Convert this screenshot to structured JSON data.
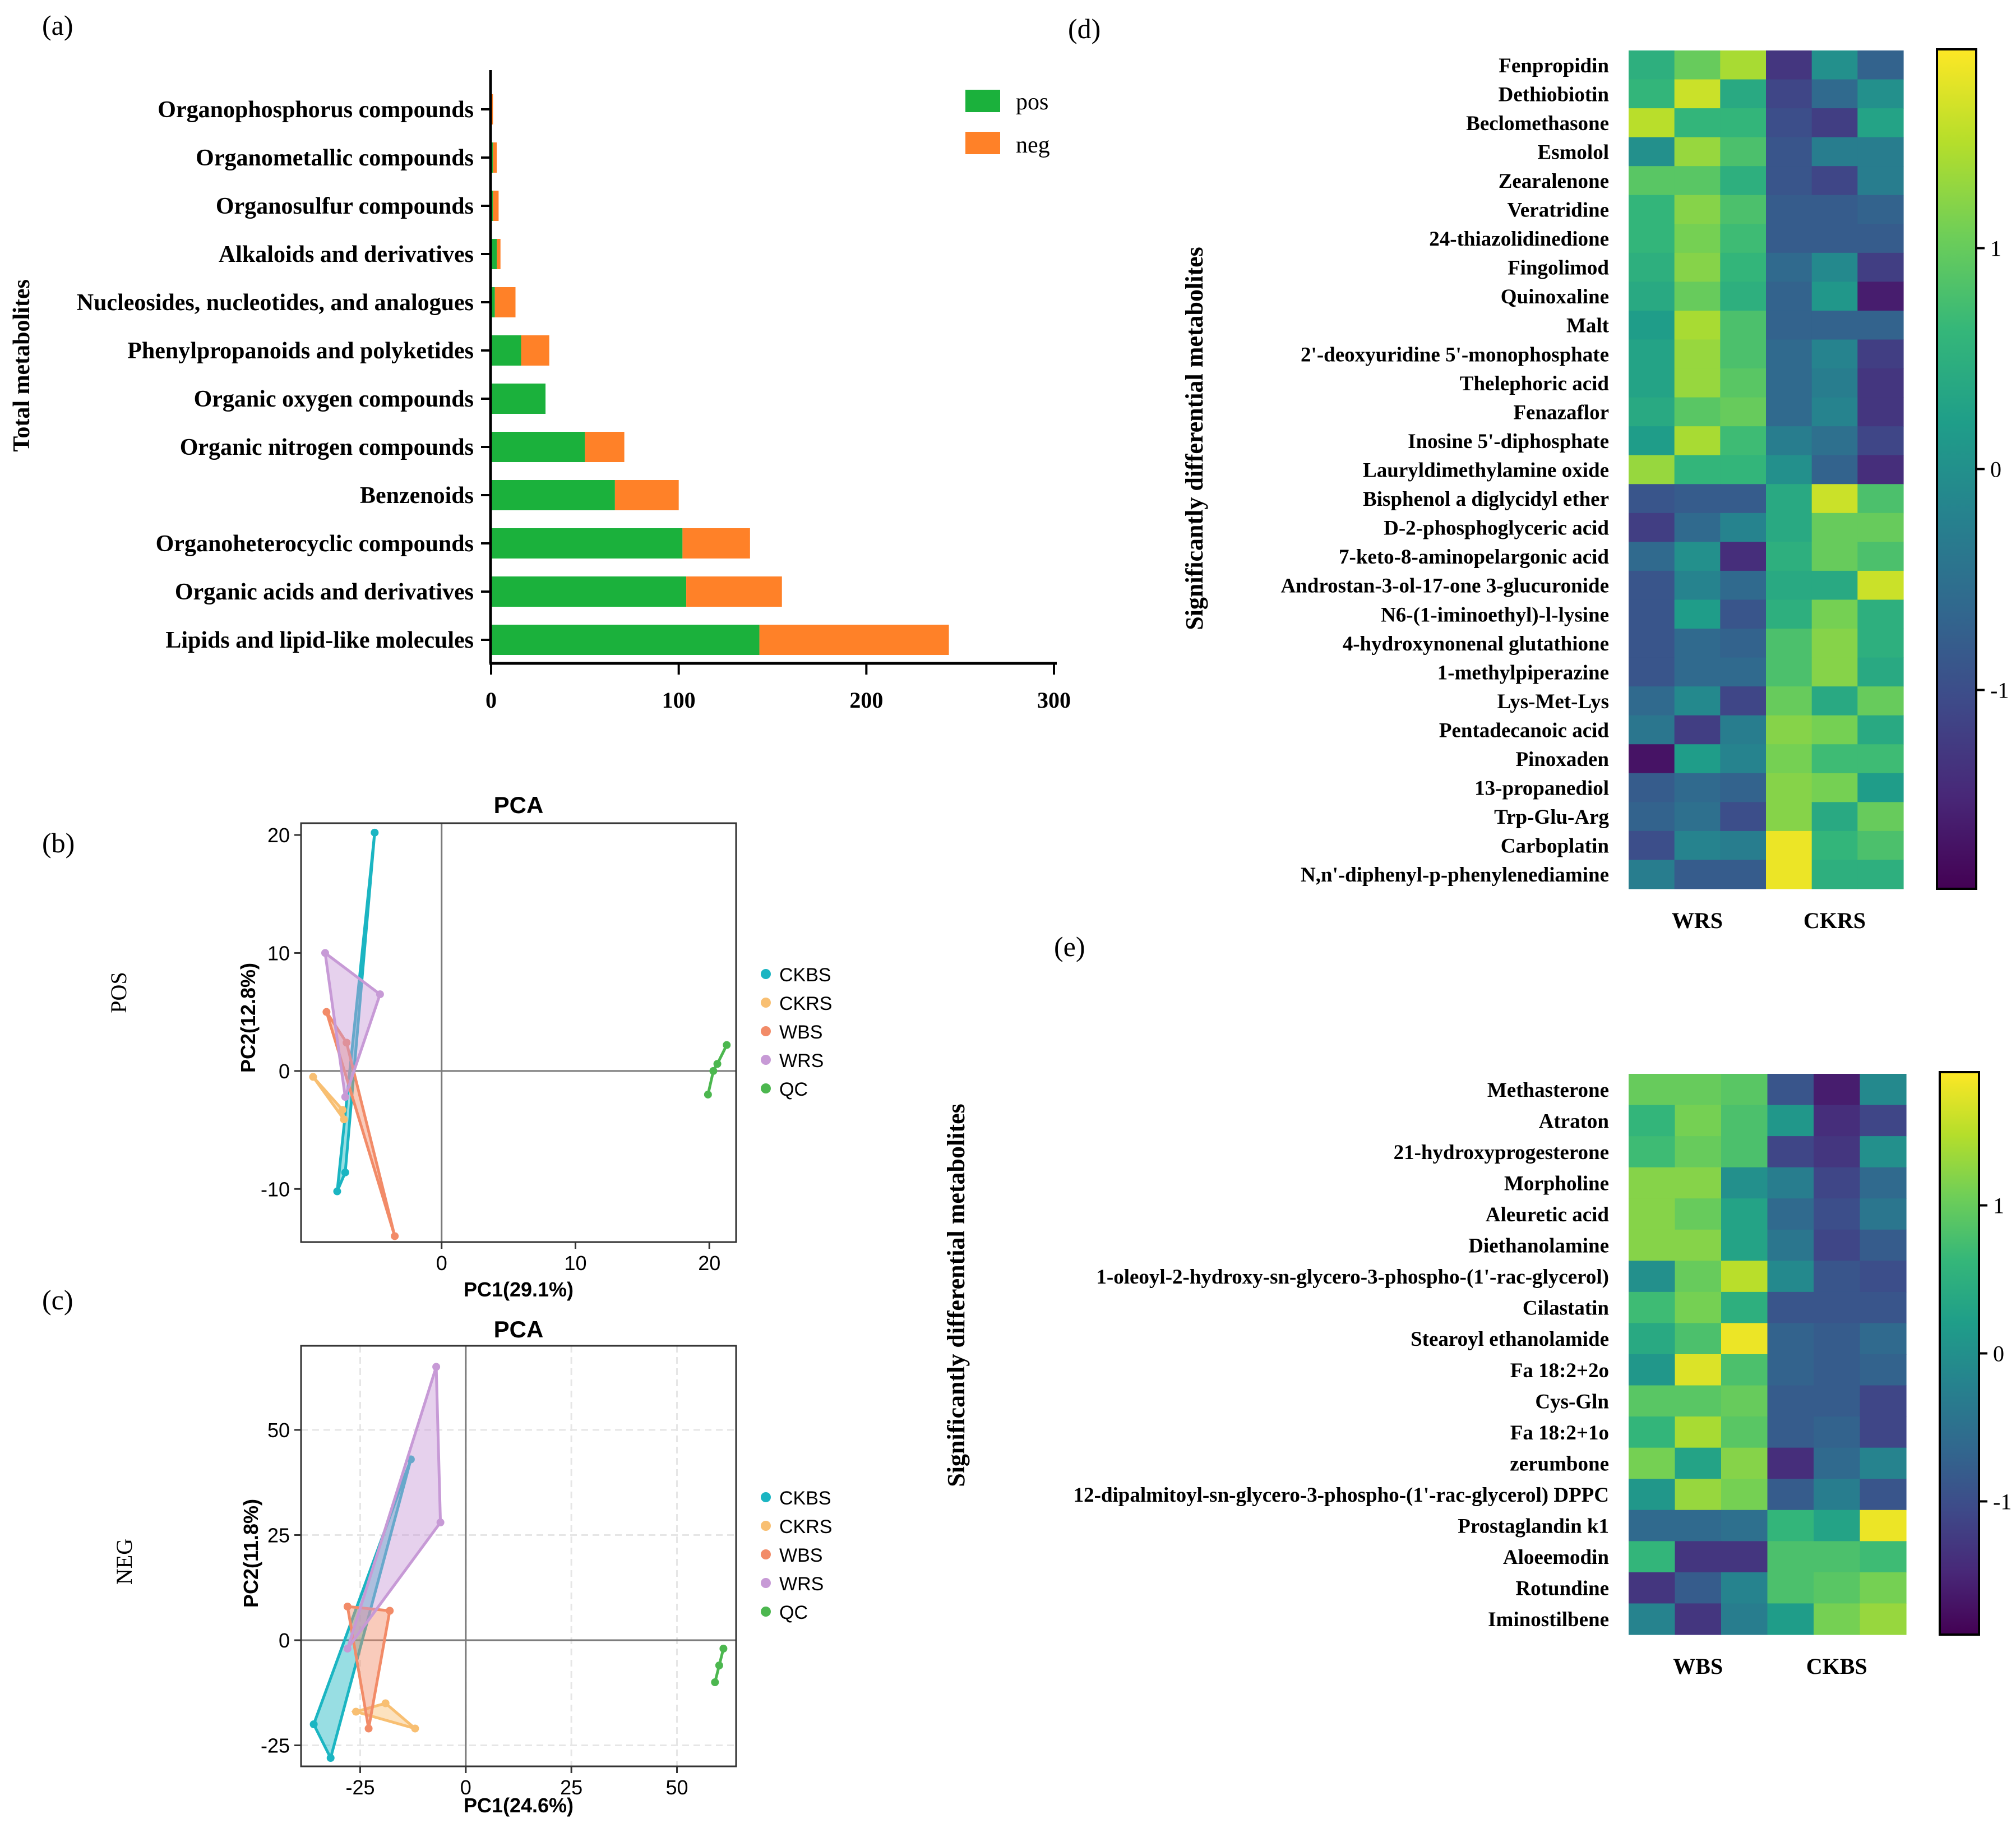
{
  "panel_labels": {
    "a": "(a)",
    "b": "(b)",
    "c": "(c)",
    "d": "(d)",
    "e": "(e)"
  },
  "colors": {
    "pos": "#1bb13c",
    "neg": "#ff8128",
    "CKBS": "#1bb5c2",
    "CKRS": "#f8bf72",
    "WBS": "#f28b68",
    "WRS": "#c79ad6",
    "QC": "#4cb74f",
    "viridis": [
      "#440154",
      "#482878",
      "#3e4a89",
      "#31688e",
      "#26828e",
      "#1f9e89",
      "#35b779",
      "#6ece58",
      "#b5de2b",
      "#fde725"
    ]
  },
  "chart_data": [
    {
      "id": "a",
      "type": "bar",
      "stacked": true,
      "orientation": "horizontal",
      "ylabel": "Total metabolites",
      "xlim": [
        0,
        300
      ],
      "xticks": [
        "0",
        "100",
        "200",
        "300"
      ],
      "categories": [
        "Organophosphorus compounds",
        "Organometallic compounds",
        "Organosulfur compounds",
        "Alkaloids and derivatives",
        "Nucleosides, nucleotides, and analogues",
        "Phenylpropanoids and polyketides",
        "Organic oxygen compounds",
        "Organic nitrogen compounds",
        "Benzenoids",
        "Organoheterocyclic compounds",
        "Organic acids and derivatives",
        "Lipids and lipid-like molecules"
      ],
      "series": [
        {
          "name": "pos",
          "values": [
            0,
            1,
            1,
            3,
            2,
            16,
            29,
            50,
            66,
            102,
            104,
            143
          ]
        },
        {
          "name": "neg",
          "values": [
            1,
            2,
            3,
            2,
            11,
            15,
            0,
            21,
            34,
            36,
            51,
            101
          ]
        }
      ],
      "legend": [
        "pos",
        "neg"
      ]
    },
    {
      "id": "b",
      "type": "scatter",
      "title": "PCA",
      "side_label": "POS",
      "xlabel": "PC1(29.1%)",
      "ylabel": "PC2(12.8%)",
      "xlim": [
        -10.5,
        22
      ],
      "ylim": [
        -14.5,
        21
      ],
      "xticks": [
        0,
        10,
        20
      ],
      "yticks": [
        -10,
        0,
        10,
        20
      ],
      "grid": false,
      "series": [
        {
          "name": "CKBS",
          "points": [
            [
              -5,
              20.2
            ],
            [
              -7.2,
              -8.6
            ],
            [
              -7.8,
              -10.2
            ]
          ]
        },
        {
          "name": "CKRS",
          "points": [
            [
              -9.6,
              -0.5
            ],
            [
              -7.4,
              -3.3
            ],
            [
              -7.3,
              -4.1
            ]
          ]
        },
        {
          "name": "WBS",
          "points": [
            [
              -8.6,
              5
            ],
            [
              -7.1,
              2.4
            ],
            [
              -3.5,
              -14
            ]
          ]
        },
        {
          "name": "WRS",
          "points": [
            [
              -8.7,
              10
            ],
            [
              -4.6,
              6.5
            ],
            [
              -7.2,
              -2.2
            ]
          ]
        },
        {
          "name": "QC",
          "points": [
            [
              21.3,
              2.2
            ],
            [
              20.6,
              0.6
            ],
            [
              20.3,
              0
            ],
            [
              19.9,
              -2
            ]
          ]
        }
      ]
    },
    {
      "id": "c",
      "type": "scatter",
      "title": "PCA",
      "side_label": "NEG",
      "xlabel": "PC1(24.6%)",
      "ylabel": "PC2(11.8%)",
      "xlim": [
        -39,
        64
      ],
      "ylim": [
        -30,
        70
      ],
      "xticks": [
        -25,
        0,
        25,
        50
      ],
      "yticks": [
        -25,
        0,
        25,
        50
      ],
      "grid": true,
      "series": [
        {
          "name": "CKBS",
          "points": [
            [
              -13,
              43
            ],
            [
              -36,
              -20
            ],
            [
              -32,
              -28
            ]
          ]
        },
        {
          "name": "CKRS",
          "points": [
            [
              -26,
              -17
            ],
            [
              -19,
              -15
            ],
            [
              -12,
              -21
            ]
          ]
        },
        {
          "name": "WBS",
          "points": [
            [
              -28,
              8
            ],
            [
              -18,
              7
            ],
            [
              -23,
              -21
            ]
          ]
        },
        {
          "name": "WRS",
          "points": [
            [
              -7,
              65
            ],
            [
              -6,
              28
            ],
            [
              -28,
              -2
            ]
          ]
        },
        {
          "name": "QC",
          "points": [
            [
              61,
              -2
            ],
            [
              60,
              -6
            ],
            [
              59,
              -10
            ]
          ]
        }
      ]
    },
    {
      "id": "d",
      "type": "heatmap",
      "ylabel": "Significantly differential metabolites",
      "groups": [
        "WRS",
        "CKRS"
      ],
      "colorbar_ticks": [
        "1",
        "0",
        "-1"
      ],
      "rows": [
        "Fenpropidin",
        "Dethiobiotin",
        "Beclomethasone",
        "Esmolol",
        "Zearalenone",
        "Veratridine",
        "24-thiazolidinedione",
        "Fingolimod",
        "Quinoxaline",
        "Malt",
        "2'-deoxyuridine 5'-monophosphate",
        "Thelephoric acid",
        "Fenazaflor",
        "Inosine 5'-diphosphate",
        "Lauryldimethylamine oxide",
        "Bisphenol a diglycidyl ether",
        "D-2-phosphoglyceric acid",
        "7-keto-8-aminopelargonic acid",
        "Androstan-3-ol-17-one 3-glucuronide",
        "N6-(1-iminoethyl)-l-lysine",
        "4-hydroxynonenal glutathione",
        "1-methylpiperazine",
        "Lys-Met-Lys",
        "Pentadecanoic acid",
        "Pinoxaden",
        "13-propanediol",
        "Trp-Glu-Arg",
        "Carboplatin",
        "N,n'-diphenyl-p-phenylenediamine"
      ],
      "values": [
        [
          0.5,
          1.0,
          1.4,
          -1.3,
          0.0,
          -0.7
        ],
        [
          0.6,
          1.6,
          0.4,
          -1.1,
          -0.6,
          0.0
        ],
        [
          1.5,
          0.6,
          0.6,
          -1.0,
          -1.2,
          0.3
        ],
        [
          0.0,
          1.3,
          0.8,
          -0.9,
          -0.3,
          -0.3
        ],
        [
          0.9,
          0.9,
          0.5,
          -0.9,
          -1.1,
          -0.3
        ],
        [
          0.6,
          1.2,
          0.8,
          -0.8,
          -0.8,
          -0.7
        ],
        [
          0.6,
          1.1,
          0.7,
          -0.8,
          -0.8,
          -0.8
        ],
        [
          0.5,
          1.2,
          0.6,
          -0.6,
          -0.1,
          -1.2
        ],
        [
          0.4,
          1.0,
          0.5,
          -0.7,
          0.1,
          -1.6
        ],
        [
          0.2,
          1.4,
          0.8,
          -0.7,
          -0.7,
          -0.7
        ],
        [
          0.3,
          1.3,
          0.8,
          -0.6,
          -0.2,
          -1.2
        ],
        [
          0.3,
          1.3,
          0.9,
          -0.6,
          -0.3,
          -1.3
        ],
        [
          0.4,
          0.9,
          1.0,
          -0.6,
          -0.2,
          -1.3
        ],
        [
          0.2,
          1.4,
          0.7,
          -0.3,
          -0.5,
          -1.1
        ],
        [
          1.3,
          0.6,
          0.6,
          0.0,
          -0.7,
          -1.4
        ],
        [
          -0.9,
          -0.8,
          -0.8,
          0.4,
          1.6,
          0.8
        ],
        [
          -1.2,
          -0.6,
          -0.2,
          0.4,
          1.0,
          1.0
        ],
        [
          -0.6,
          0.0,
          -1.4,
          0.5,
          1.0,
          0.8
        ],
        [
          -0.9,
          -0.2,
          -0.6,
          0.4,
          0.4,
          1.6
        ],
        [
          -0.9,
          0.2,
          -0.9,
          0.5,
          1.1,
          0.5
        ],
        [
          -0.9,
          -0.6,
          -0.7,
          0.8,
          1.2,
          0.5
        ],
        [
          -0.9,
          -0.6,
          -0.6,
          0.8,
          1.2,
          0.4
        ],
        [
          -0.6,
          -0.1,
          -1.1,
          1.0,
          0.4,
          1.0
        ],
        [
          -0.4,
          -1.2,
          -0.3,
          1.2,
          1.1,
          0.4
        ],
        [
          -1.7,
          0.2,
          -0.2,
          1.1,
          0.7,
          0.7
        ],
        [
          -0.8,
          -0.6,
          -0.7,
          1.2,
          1.1,
          0.2
        ],
        [
          -0.7,
          -0.5,
          -1.0,
          1.2,
          0.4,
          1.0
        ],
        [
          -1.0,
          -0.2,
          -0.3,
          1.8,
          0.6,
          0.8
        ],
        [
          -0.3,
          -0.8,
          -0.8,
          1.8,
          0.5,
          0.5
        ]
      ]
    },
    {
      "id": "e",
      "type": "heatmap",
      "ylabel": "Significantly differential metabolites",
      "groups": [
        "WBS",
        "CKBS"
      ],
      "colorbar_ticks": [
        "1",
        "0",
        "-1"
      ],
      "rows": [
        "Methasterone",
        "Atraton",
        "21-hydroxyprogesterone",
        "Morpholine",
        "Aleuretic acid",
        "Diethanolamine",
        "1-oleoyl-2-hydroxy-sn-glycero-3-phospho-(1'-rac-glycerol)",
        "Cilastatin",
        "Stearoyl ethanolamide",
        "Fa 18:2+2o",
        "Cys-Gln",
        "Fa 18:2+1o",
        "zerumbone",
        "12-dipalmitoyl-sn-glycero-3-phospho-(1'-rac-glycerol) DPPC",
        "Prostaglandin k1",
        "Aloeemodin",
        "Rotundine",
        "Iminostilbene"
      ],
      "values": [
        [
          1.0,
          1.0,
          0.9,
          -0.9,
          -1.6,
          -0.1
        ],
        [
          0.6,
          1.1,
          0.8,
          0.1,
          -1.4,
          -1.1
        ],
        [
          0.7,
          1.0,
          0.8,
          -1.1,
          -1.3,
          0.0
        ],
        [
          1.2,
          1.2,
          0.0,
          -0.3,
          -1.1,
          -0.6
        ],
        [
          1.2,
          1.0,
          0.3,
          -0.6,
          -1.0,
          -0.4
        ],
        [
          1.2,
          1.2,
          0.3,
          -0.4,
          -1.1,
          -0.8
        ],
        [
          0.0,
          1.0,
          1.5,
          -0.1,
          -0.9,
          -1.0
        ],
        [
          0.7,
          1.1,
          0.5,
          -0.9,
          -0.9,
          -0.9
        ],
        [
          0.4,
          0.8,
          1.8,
          -0.7,
          -0.8,
          -0.6
        ],
        [
          0.1,
          1.7,
          0.8,
          -0.7,
          -0.8,
          -0.7
        ],
        [
          0.9,
          0.9,
          1.0,
          -0.8,
          -0.8,
          -1.1
        ],
        [
          0.6,
          1.4,
          0.9,
          -0.8,
          -0.7,
          -1.1
        ],
        [
          1.1,
          0.3,
          1.2,
          -1.4,
          -0.6,
          -0.2
        ],
        [
          0.1,
          1.3,
          1.1,
          -0.8,
          -0.3,
          -0.9
        ],
        [
          -0.6,
          -0.6,
          -0.5,
          0.6,
          0.3,
          1.8
        ],
        [
          0.6,
          -1.3,
          -1.3,
          0.8,
          0.8,
          0.7
        ],
        [
          -1.3,
          -0.8,
          -0.2,
          0.8,
          0.9,
          1.1
        ],
        [
          -0.2,
          -1.3,
          -0.3,
          0.2,
          1.1,
          1.3
        ]
      ]
    }
  ]
}
